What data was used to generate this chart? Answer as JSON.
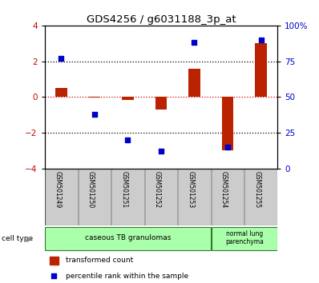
{
  "title": "GDS4256 / g6031188_3p_at",
  "samples": [
    "GSM501249",
    "GSM501250",
    "GSM501251",
    "GSM501252",
    "GSM501253",
    "GSM501254",
    "GSM501255"
  ],
  "transformed_count": [
    0.5,
    -0.05,
    -0.15,
    -0.7,
    1.6,
    -3.0,
    3.0
  ],
  "percentile_rank": [
    77,
    38,
    20,
    12,
    88,
    15,
    90
  ],
  "ylim_left": [
    -4,
    4
  ],
  "ylim_right": [
    0,
    100
  ],
  "yticks_left": [
    -4,
    -2,
    0,
    2,
    4
  ],
  "yticks_right": [
    0,
    25,
    50,
    75,
    100
  ],
  "hlines_dotted": [
    2,
    -2
  ],
  "bar_color": "#bb2200",
  "dot_color": "#0000cc",
  "legend_bar_label": "transformed count",
  "legend_dot_label": "percentile rank within the sample",
  "background_color": "#ffffff",
  "tick_label_color_left": "#cc0000",
  "tick_label_color_right": "#0000cc",
  "sample_bg": "#cccccc",
  "celltype_bg": "#aaffaa",
  "bar_width": 0.35
}
